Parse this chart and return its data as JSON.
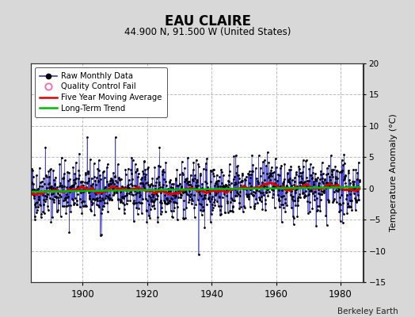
{
  "title": "EAU CLAIRE",
  "subtitle": "44.900 N, 91.500 W (United States)",
  "ylabel": "Temperature Anomaly (°C)",
  "credit": "Berkeley Earth",
  "xlim": [
    1884,
    1987
  ],
  "ylim": [
    -15,
    20
  ],
  "yticks": [
    -15,
    -10,
    -5,
    0,
    5,
    10,
    15,
    20
  ],
  "xticks": [
    1900,
    1920,
    1940,
    1960,
    1980
  ],
  "bg_color": "#d8d8d8",
  "plot_bg_color": "#ffffff",
  "raw_line_color": "#3333cc",
  "raw_dot_color": "#000000",
  "ma_color": "#dd0000",
  "trend_color": "#00bb00",
  "qc_color": "#ff66aa",
  "seed": 42,
  "start_year": 1884,
  "end_year": 1985
}
